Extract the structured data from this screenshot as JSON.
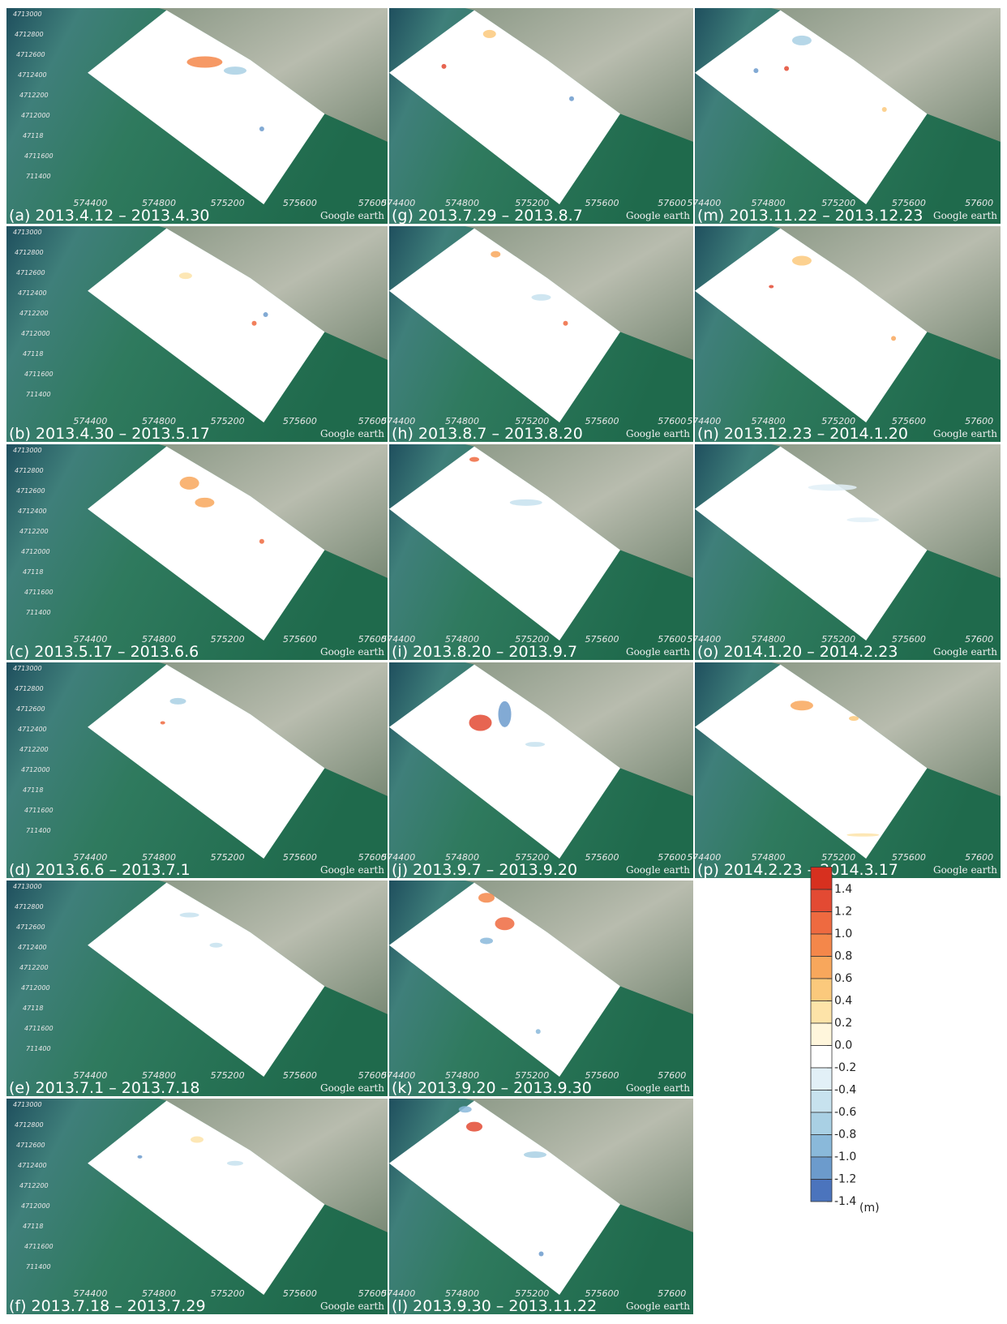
{
  "panels": [
    {
      "label": "(a) 2013.4.12 – 2013.4.30"
    },
    {
      "label": "(b) 2013.4.30 – 2013.5.17"
    },
    {
      "label": "(c) 2013.5.17 – 2013.6.6"
    },
    {
      "label": "(d) 2013.6.6 – 2013.7.1"
    },
    {
      "label": "(e) 2013.7.1 – 2013.7.18"
    },
    {
      "label": "(f) 2013.7.18 – 2013.7.29"
    },
    {
      "label": "(g) 2013.7.29 – 2013.8.7"
    },
    {
      "label": "(h) 2013.8.7 – 2013.8.20"
    },
    {
      "label": "(i) 2013.8.20 – 2013.9.7"
    },
    {
      "label": "(j) 2013.9.7 – 2013.9.20"
    },
    {
      "label": "(k) 2013.9.20 – 2013.9.30"
    },
    {
      "label": "(l) 2013.9.30 – 2013.11.22"
    },
    {
      "label": "(m) 2013.11.22 – 2013.12.23"
    },
    {
      "label": "(n) 2013.12.23 – 2014.1.20"
    },
    {
      "label": "(o) 2014.1.20 – 2014.2.23"
    },
    {
      "label": "(p) 2014.2.23 – 2014.3.17"
    }
  ],
  "map_axes": {
    "x_labels": [
      "574400",
      "574800",
      "575200",
      "575600",
      "57600"
    ],
    "y_labels": [
      "4713000",
      "4712800",
      "4712600",
      "4712400",
      "4712200",
      "4712000",
      "47118",
      "4711600",
      "711400"
    ]
  },
  "watermark": "Google earth",
  "colorbar": {
    "unit": "(m)",
    "ticks": [
      1.4,
      1.2,
      {
        "value": 1,
        "label": "1.0"
      },
      0.8,
      0.6,
      0.4,
      0.2,
      {
        "value": 0,
        "label": "0.0"
      },
      -0.2,
      -0.4,
      -0.6,
      -0.8,
      {
        "value": -1,
        "label": "-1.0"
      },
      -1.2,
      -1.4
    ],
    "colors": [
      "#d7301f",
      "#e34a33",
      "#ee6a40",
      "#f4874a",
      "#f8a75c",
      "#fbc97c",
      "#fde3a8",
      "#fff6dc",
      "#ffffff",
      "#e2f0f7",
      "#c7e2ee",
      "#a9d0e4",
      "#8ab9da",
      "#6c9bcc",
      "#4b74bd"
    ]
  }
}
